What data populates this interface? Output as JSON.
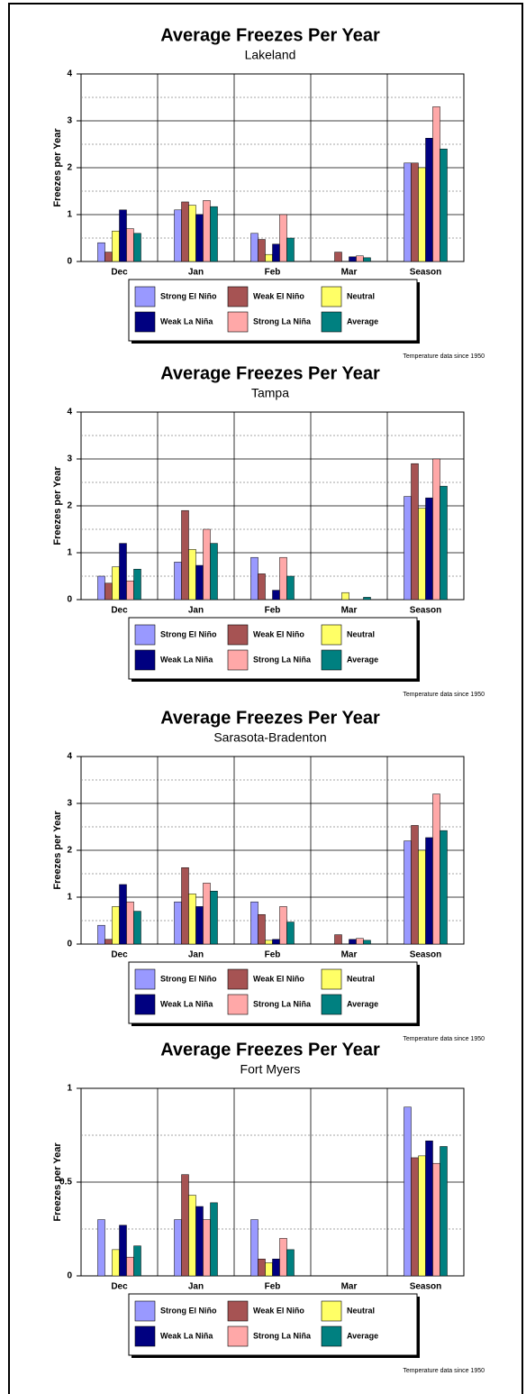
{
  "chart_data": [
    {
      "type": "bar",
      "title": "Average Freezes Per Year",
      "subtitle": "Lakeland",
      "ylabel": "Freezes per Year",
      "note": "Temperature data since 1950",
      "categories": [
        "Dec",
        "Jan",
        "Feb",
        "Mar",
        "Season"
      ],
      "ylim": [
        0,
        4
      ],
      "yticks": [
        0,
        1,
        2,
        3,
        4
      ],
      "grid": true,
      "series": [
        {
          "name": "Strong El Niño",
          "color": "#9999ff",
          "values": [
            0.4,
            1.1,
            0.6,
            0,
            2.1
          ]
        },
        {
          "name": "Weak El Niño",
          "color": "#a65353",
          "values": [
            0.2,
            1.27,
            0.47,
            0.2,
            2.1
          ]
        },
        {
          "name": "Neutral",
          "color": "#ffff66",
          "values": [
            0.65,
            1.2,
            0.15,
            0,
            2.0
          ]
        },
        {
          "name": "Weak La Niña",
          "color": "#000080",
          "values": [
            1.1,
            1.0,
            0.37,
            0.1,
            2.63
          ]
        },
        {
          "name": "Strong La Niña",
          "color": "#ffa8a8",
          "values": [
            0.7,
            1.3,
            1.0,
            0.12,
            3.3
          ]
        },
        {
          "name": "Average",
          "color": "#008080",
          "values": [
            0.6,
            1.17,
            0.5,
            0.08,
            2.4
          ]
        }
      ]
    },
    {
      "type": "bar",
      "title": "Average Freezes Per Year",
      "subtitle": "Tampa",
      "ylabel": "Freezes per Year",
      "note": "Temperature data since 1950",
      "categories": [
        "Dec",
        "Jan",
        "Feb",
        "Mar",
        "Season"
      ],
      "ylim": [
        0,
        4
      ],
      "yticks": [
        0,
        1,
        2,
        3,
        4
      ],
      "grid": true,
      "series": [
        {
          "name": "Strong El Niño",
          "color": "#9999ff",
          "values": [
            0.5,
            0.8,
            0.9,
            0,
            2.2
          ]
        },
        {
          "name": "Weak El Niño",
          "color": "#a65353",
          "values": [
            0.35,
            1.9,
            0.55,
            0,
            2.9
          ]
        },
        {
          "name": "Neutral",
          "color": "#ffff66",
          "values": [
            0.7,
            1.07,
            0,
            0.15,
            1.95
          ]
        },
        {
          "name": "Weak La Niña",
          "color": "#000080",
          "values": [
            1.2,
            0.73,
            0.2,
            0,
            2.17
          ]
        },
        {
          "name": "Strong La Niña",
          "color": "#ffa8a8",
          "values": [
            0.4,
            1.5,
            0.9,
            0,
            3.0
          ]
        },
        {
          "name": "Average",
          "color": "#008080",
          "values": [
            0.65,
            1.2,
            0.5,
            0.05,
            2.42
          ]
        }
      ]
    },
    {
      "type": "bar",
      "title": "Average Freezes Per Year",
      "subtitle": "Sarasota-Bradenton",
      "ylabel": "Freezes per Year",
      "note": "Temperature data since 1950",
      "categories": [
        "Dec",
        "Jan",
        "Feb",
        "Mar",
        "Season"
      ],
      "ylim": [
        0,
        4
      ],
      "yticks": [
        0,
        1,
        2,
        3,
        4
      ],
      "grid": true,
      "series": [
        {
          "name": "Strong El Niño",
          "color": "#9999ff",
          "values": [
            0.4,
            0.9,
            0.9,
            0,
            2.2
          ]
        },
        {
          "name": "Weak El Niño",
          "color": "#a65353",
          "values": [
            0.1,
            1.63,
            0.63,
            0.2,
            2.53
          ]
        },
        {
          "name": "Neutral",
          "color": "#ffff66",
          "values": [
            0.8,
            1.07,
            0.08,
            0,
            2.0
          ]
        },
        {
          "name": "Weak La Niña",
          "color": "#000080",
          "values": [
            1.27,
            0.8,
            0.1,
            0.1,
            2.27
          ]
        },
        {
          "name": "Strong La Niña",
          "color": "#ffa8a8",
          "values": [
            0.9,
            1.3,
            0.8,
            0.12,
            3.2
          ]
        },
        {
          "name": "Average",
          "color": "#008080",
          "values": [
            0.7,
            1.13,
            0.47,
            0.08,
            2.42
          ]
        }
      ]
    },
    {
      "type": "bar",
      "title": "Average Freezes Per Year",
      "subtitle": "Fort Myers",
      "ylabel": "Freezes per Year",
      "note": "Temperature data since 1950",
      "categories": [
        "Dec",
        "Jan",
        "Feb",
        "Mar",
        "Season"
      ],
      "ylim": [
        0,
        1
      ],
      "yticks": [
        0,
        0.5,
        1
      ],
      "grid": true,
      "series": [
        {
          "name": "Strong El Niño",
          "color": "#9999ff",
          "values": [
            0.3,
            0.3,
            0.3,
            0,
            0.9
          ]
        },
        {
          "name": "Weak El Niño",
          "color": "#a65353",
          "values": [
            0,
            0.54,
            0.09,
            0,
            0.63
          ]
        },
        {
          "name": "Neutral",
          "color": "#ffff66",
          "values": [
            0.14,
            0.43,
            0.07,
            0,
            0.64
          ]
        },
        {
          "name": "Weak La Niña",
          "color": "#000080",
          "values": [
            0.27,
            0.37,
            0.09,
            0,
            0.72
          ]
        },
        {
          "name": "Strong La Niña",
          "color": "#ffa8a8",
          "values": [
            0.1,
            0.3,
            0.2,
            0,
            0.6
          ]
        },
        {
          "name": "Average",
          "color": "#008080",
          "values": [
            0.16,
            0.39,
            0.14,
            0,
            0.69
          ]
        }
      ]
    }
  ]
}
